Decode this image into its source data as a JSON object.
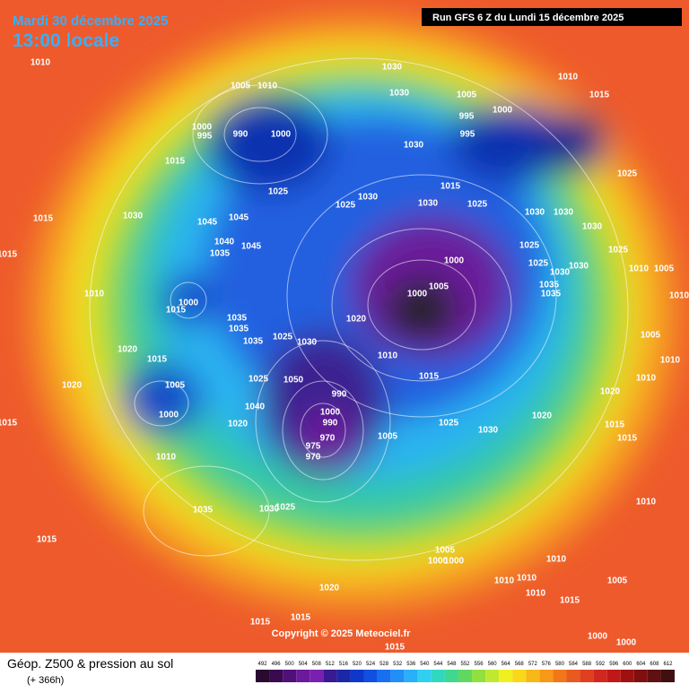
{
  "header": {
    "date_line": "Mardi 30 décembre 2025",
    "time_line": "13:00 locale",
    "run": "Run GFS 6 Z du Lundi 15 décembre 2025"
  },
  "copyright": "Copyright © 2025 Meteociel.fr",
  "footer": {
    "title": "Géop. Z500 & pression au sol",
    "subtitle": "(+ 366h)"
  },
  "colorbar": {
    "ticks": [
      492,
      496,
      500,
      504,
      508,
      512,
      516,
      520,
      524,
      528,
      532,
      536,
      540,
      544,
      548,
      552,
      556,
      560,
      564,
      568,
      572,
      576,
      580,
      584,
      588,
      592,
      596,
      600,
      604,
      608,
      612
    ]
  },
  "isobar_labels": [
    "1010",
    "1005",
    "1010",
    "1000",
    "995",
    "990",
    "1000",
    "1015",
    "1015",
    "1030",
    "1045",
    "1045",
    "1040",
    "1035",
    "1045",
    "1015",
    "1010",
    "1015",
    "1000",
    "1035",
    "1035",
    "1035",
    "1025",
    "1030",
    "1020",
    "1015",
    "1020",
    "1005",
    "1000",
    "1015",
    "1010",
    "1020",
    "1040",
    "1025",
    "1050",
    "990",
    "1000",
    "990",
    "970",
    "975",
    "970",
    "1005",
    "1025",
    "1030",
    "1020",
    "1020",
    "1015",
    "1015",
    "1010",
    "1035",
    "1030",
    "1025",
    "1015",
    "1005",
    "1000",
    "1000",
    "1010",
    "1010",
    "1010",
    "1010",
    "1015",
    "1005",
    "1020",
    "1015",
    "1015",
    "1015",
    "1000",
    "1000",
    "1030",
    "1030",
    "1005",
    "995",
    "995",
    "1000",
    "1010",
    "1015",
    "1030",
    "1015",
    "1030",
    "1025",
    "1030",
    "1025",
    "1025",
    "1030",
    "1030",
    "1025",
    "1030",
    "1025",
    "1025",
    "1030",
    "1030",
    "1035",
    "1035",
    "1025",
    "1010",
    "1005",
    "1000",
    "1005",
    "1000",
    "1020",
    "1010",
    "1015",
    "1005",
    "1010",
    "1010",
    "1010"
  ]
}
